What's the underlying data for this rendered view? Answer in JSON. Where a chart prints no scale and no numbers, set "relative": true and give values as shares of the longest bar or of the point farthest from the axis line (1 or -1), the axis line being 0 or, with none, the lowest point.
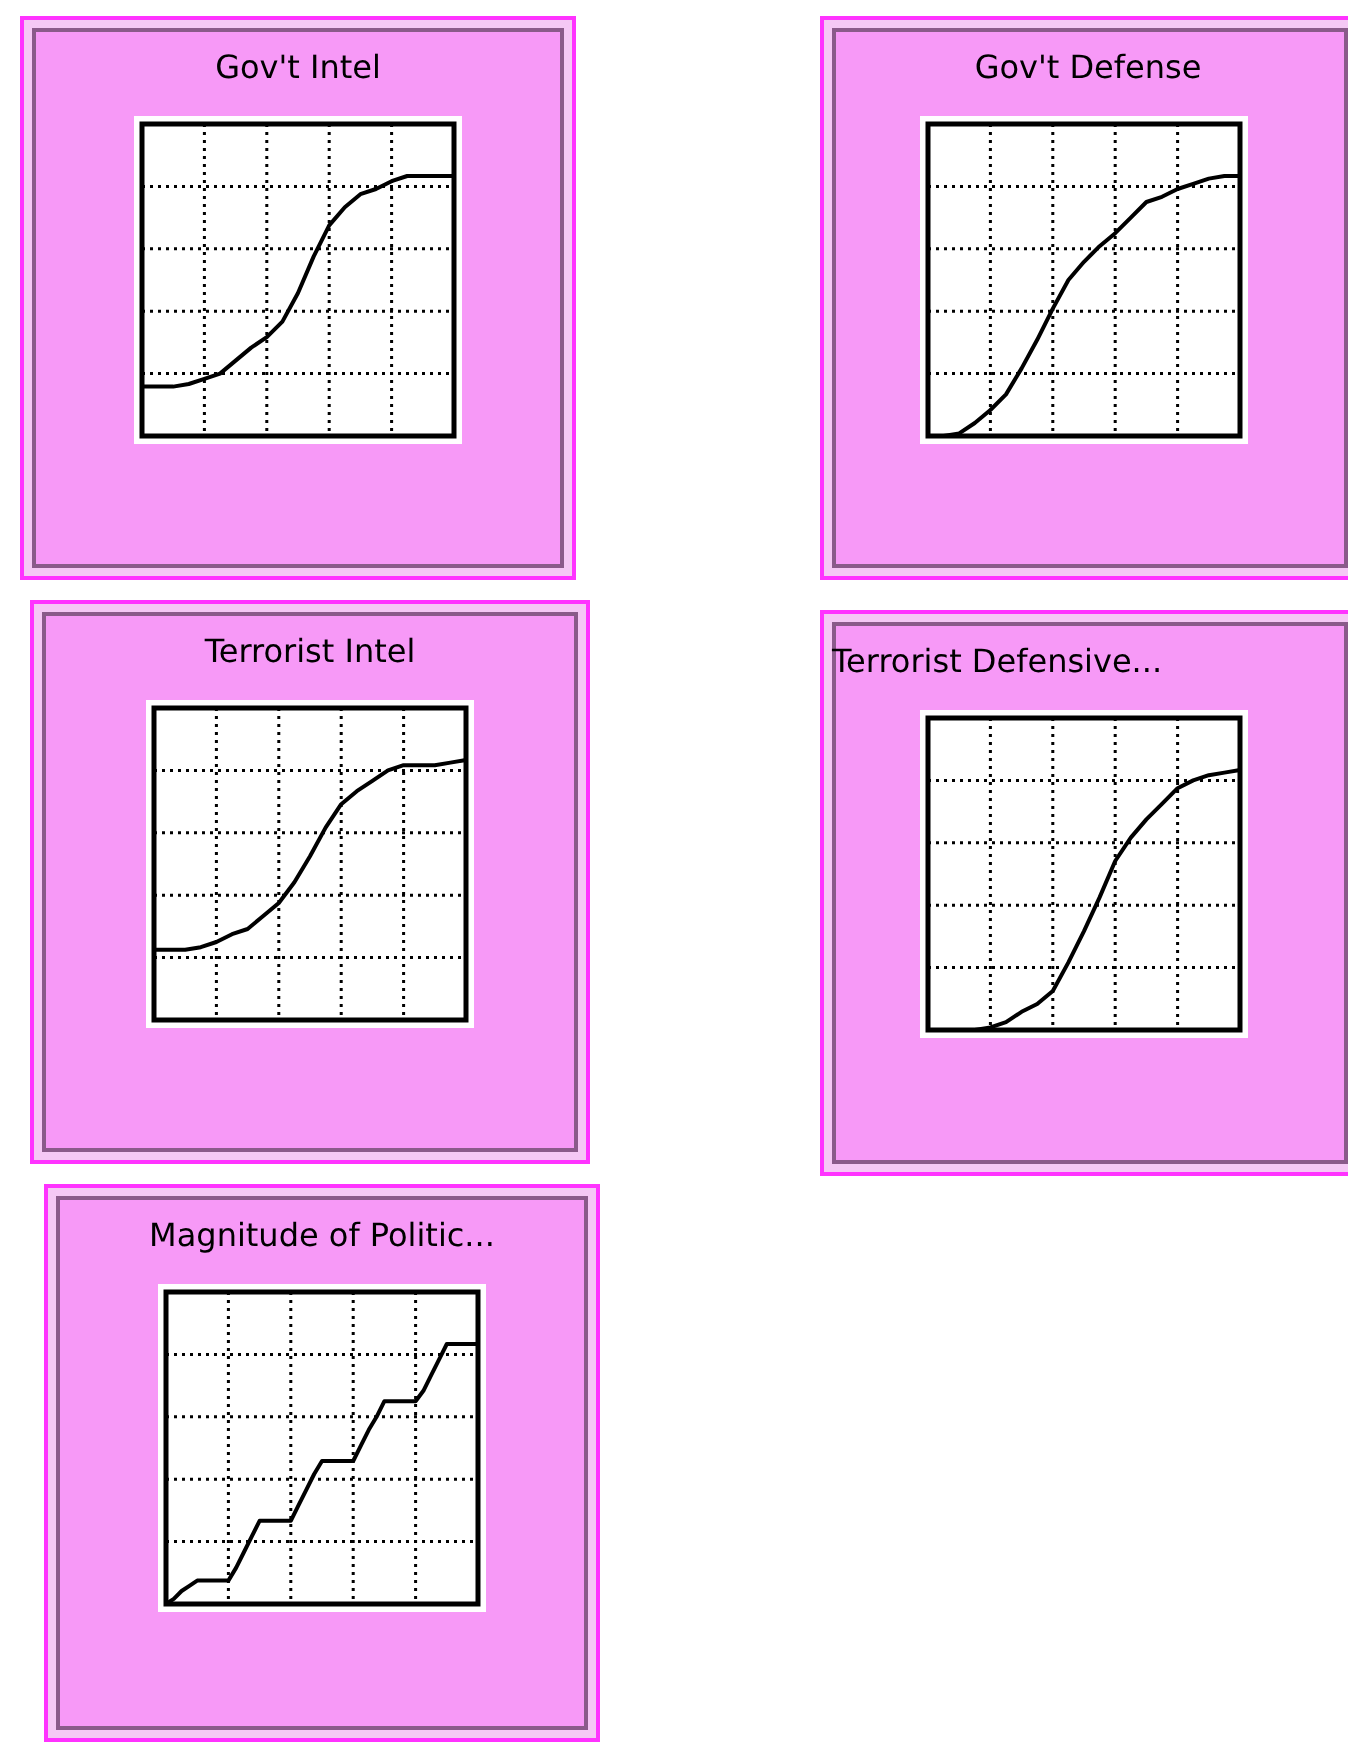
{
  "chart_data": [
    {
      "type": "line",
      "title": "Gov't Intel",
      "relative": true,
      "grid": true,
      "marker": "none",
      "legend": false,
      "categories": [
        null,
        null,
        null,
        null,
        null,
        null,
        null,
        null,
        null,
        null,
        null,
        null,
        null,
        null,
        null,
        null,
        null,
        null,
        null,
        null,
        null
      ],
      "series": [
        {
          "color": "#000000",
          "values": [
            0.19,
            0.19,
            0.19,
            0.2,
            0.22,
            0.24,
            0.29,
            0.34,
            0.38,
            0.44,
            0.55,
            0.69,
            0.81,
            0.88,
            0.93,
            0.95,
            0.98,
            1,
            1,
            1,
            1
          ]
        }
      ]
    },
    {
      "type": "line",
      "title": "Gov't Defense",
      "relative": true,
      "grid": true,
      "marker": "none",
      "legend": false,
      "categories": [
        null,
        null,
        null,
        null,
        null,
        null,
        null,
        null,
        null,
        null,
        null,
        null,
        null,
        null,
        null,
        null,
        null,
        null,
        null,
        null,
        null
      ],
      "series": [
        {
          "color": "#000000",
          "values": [
            0,
            0,
            0.01,
            0.05,
            0.1,
            0.16,
            0.26,
            0.37,
            0.49,
            0.6,
            0.67,
            0.73,
            0.78,
            0.84,
            0.9,
            0.92,
            0.95,
            0.97,
            0.99,
            1,
            1
          ]
        }
      ]
    },
    {
      "type": "line",
      "title": "Terrorist Intel",
      "relative": true,
      "grid": true,
      "marker": "none",
      "legend": false,
      "categories": [
        null,
        null,
        null,
        null,
        null,
        null,
        null,
        null,
        null,
        null,
        null,
        null,
        null,
        null,
        null,
        null,
        null,
        null,
        null,
        null,
        null
      ],
      "series": [
        {
          "color": "#000000",
          "values": [
            0.27,
            0.27,
            0.27,
            0.28,
            0.3,
            0.33,
            0.35,
            0.4,
            0.45,
            0.53,
            0.63,
            0.74,
            0.83,
            0.88,
            0.92,
            0.96,
            0.98,
            0.98,
            0.98,
            0.99,
            1
          ]
        }
      ]
    },
    {
      "type": "line",
      "title": "Terrorist Defensive...",
      "relative": true,
      "grid": true,
      "marker": "none",
      "legend": false,
      "categories": [
        null,
        null,
        null,
        null,
        null,
        null,
        null,
        null,
        null,
        null,
        null,
        null,
        null,
        null,
        null,
        null,
        null,
        null,
        null,
        null,
        null
      ],
      "series": [
        {
          "color": "#000000",
          "values": [
            0,
            0,
            0,
            0,
            0.01,
            0.03,
            0.07,
            0.1,
            0.15,
            0.26,
            0.38,
            0.51,
            0.65,
            0.74,
            0.81,
            0.87,
            0.93,
            0.96,
            0.98,
            0.99,
            1
          ]
        }
      ]
    },
    {
      "type": "line",
      "title": "Magnitude of Politic...",
      "relative": true,
      "grid": true,
      "marker": "none",
      "legend": false,
      "categories": [
        null,
        null,
        null,
        null,
        null,
        null,
        null,
        null,
        null,
        null,
        null,
        null,
        null,
        null,
        null,
        null,
        null,
        null,
        null,
        null,
        null,
        null,
        null,
        null,
        null,
        null,
        null,
        null,
        null,
        null,
        null,
        null,
        null,
        null,
        null,
        null,
        null,
        null,
        null,
        null,
        null
      ],
      "series": [
        {
          "color": "#000000",
          "values": [
            0,
            0.02,
            0.05,
            0.07,
            0.09,
            0.09,
            0.09,
            0.09,
            0.09,
            0.14,
            0.2,
            0.26,
            0.32,
            0.32,
            0.32,
            0.32,
            0.32,
            0.38,
            0.44,
            0.5,
            0.55,
            0.55,
            0.55,
            0.55,
            0.55,
            0.61,
            0.67,
            0.72,
            0.78,
            0.78,
            0.78,
            0.78,
            0.78,
            0.82,
            0.88,
            0.94,
            1,
            1,
            1,
            1,
            1
          ]
        }
      ]
    }
  ]
}
